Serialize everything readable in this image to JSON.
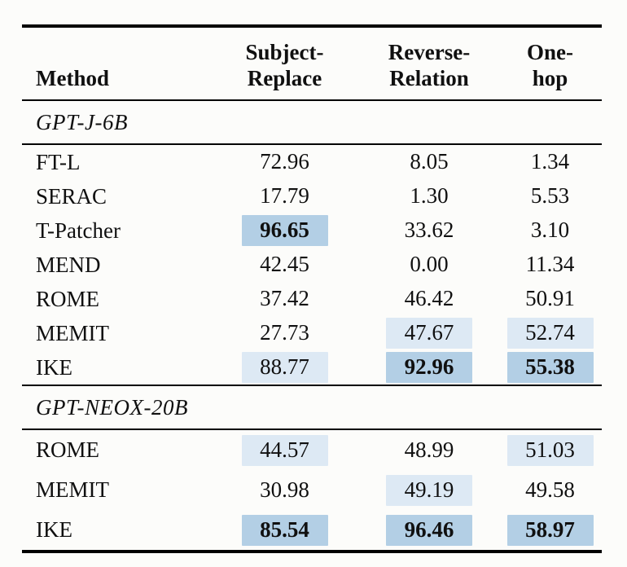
{
  "table": {
    "header": {
      "method": "Method",
      "columns": [
        {
          "line1": "Subject-",
          "line2": "Replace"
        },
        {
          "line1": "Reverse-",
          "line2": "Relation"
        },
        {
          "line1": "One-",
          "line2": "hop"
        }
      ]
    },
    "sections": [
      {
        "title": "GPT-J-6B",
        "rows": [
          {
            "method": "FT-L",
            "values": [
              {
                "text": "72.96",
                "bold": false,
                "highlight": "none"
              },
              {
                "text": "8.05",
                "bold": false,
                "highlight": "none"
              },
              {
                "text": "1.34",
                "bold": false,
                "highlight": "none"
              }
            ]
          },
          {
            "method": "SERAC",
            "values": [
              {
                "text": "17.79",
                "bold": false,
                "highlight": "none"
              },
              {
                "text": "1.30",
                "bold": false,
                "highlight": "none"
              },
              {
                "text": "5.53",
                "bold": false,
                "highlight": "none"
              }
            ]
          },
          {
            "method": "T-Patcher",
            "values": [
              {
                "text": "96.65",
                "bold": true,
                "highlight": "strong"
              },
              {
                "text": "33.62",
                "bold": false,
                "highlight": "none"
              },
              {
                "text": "3.10",
                "bold": false,
                "highlight": "none"
              }
            ]
          },
          {
            "method": "MEND",
            "values": [
              {
                "text": "42.45",
                "bold": false,
                "highlight": "none"
              },
              {
                "text": "0.00",
                "bold": false,
                "highlight": "none"
              },
              {
                "text": "11.34",
                "bold": false,
                "highlight": "none"
              }
            ]
          },
          {
            "method": "ROME",
            "values": [
              {
                "text": "37.42",
                "bold": false,
                "highlight": "none"
              },
              {
                "text": "46.42",
                "bold": false,
                "highlight": "none"
              },
              {
                "text": "50.91",
                "bold": false,
                "highlight": "none"
              }
            ]
          },
          {
            "method": "MEMIT",
            "values": [
              {
                "text": "27.73",
                "bold": false,
                "highlight": "none"
              },
              {
                "text": "47.67",
                "bold": false,
                "highlight": "light"
              },
              {
                "text": "52.74",
                "bold": false,
                "highlight": "light"
              }
            ]
          },
          {
            "method": "IKE",
            "values": [
              {
                "text": "88.77",
                "bold": false,
                "highlight": "light"
              },
              {
                "text": "92.96",
                "bold": true,
                "highlight": "strong"
              },
              {
                "text": "55.38",
                "bold": true,
                "highlight": "strong"
              }
            ]
          }
        ]
      },
      {
        "title": "GPT-NEOX-20B",
        "rows": [
          {
            "method": "ROME",
            "values": [
              {
                "text": "44.57",
                "bold": false,
                "highlight": "light"
              },
              {
                "text": "48.99",
                "bold": false,
                "highlight": "none"
              },
              {
                "text": "51.03",
                "bold": false,
                "highlight": "light"
              }
            ]
          },
          {
            "method": "MEMIT",
            "values": [
              {
                "text": "30.98",
                "bold": false,
                "highlight": "none"
              },
              {
                "text": "49.19",
                "bold": false,
                "highlight": "light"
              },
              {
                "text": "49.58",
                "bold": false,
                "highlight": "none"
              }
            ]
          },
          {
            "method": "IKE",
            "values": [
              {
                "text": "85.54",
                "bold": true,
                "highlight": "strong"
              },
              {
                "text": "96.46",
                "bold": true,
                "highlight": "strong"
              },
              {
                "text": "58.97",
                "bold": true,
                "highlight": "strong"
              }
            ]
          }
        ]
      }
    ]
  },
  "colors": {
    "highlight_strong": "#b3cfe5",
    "highlight_light": "#dde9f4",
    "rule": "#000000",
    "text": "#101010",
    "background": "#fcfcfa"
  }
}
